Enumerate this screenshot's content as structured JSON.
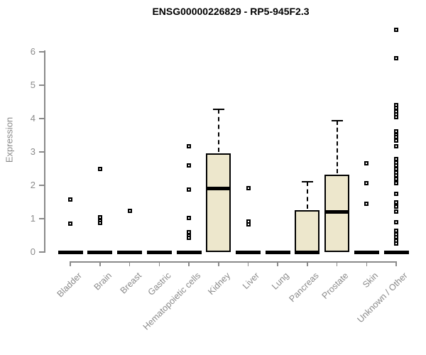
{
  "colors": {
    "box_fill": "#ede7cc",
    "box_border": "#000000",
    "axis_gray": "#8a8a8a",
    "title_color": "#000000",
    "background": "#ffffff"
  },
  "chart_data": {
    "type": "boxplot",
    "title": "ENSG00000226829 - RP5-945F2.3",
    "xlabel": "",
    "ylabel": "Expression",
    "ylim": [
      0,
      6.7
    ],
    "yticks": [
      0,
      1,
      2,
      3,
      4,
      5,
      6
    ],
    "grid": false,
    "legend": "none",
    "categories": [
      "Bladder",
      "Brain",
      "Breast",
      "Gastric",
      "Hematopoietic cells",
      "Kidney",
      "Liver",
      "Lung",
      "Pancreas",
      "Prostate",
      "Skin",
      "Unknown / Other"
    ],
    "series": [
      {
        "category": "Bladder",
        "q1": 0,
        "median": 0,
        "q3": 0,
        "whisker_low": 0,
        "whisker_high": 0,
        "outliers": [
          1.57,
          0.85
        ]
      },
      {
        "category": "Brain",
        "q1": 0,
        "median": 0,
        "q3": 0,
        "whisker_low": 0,
        "whisker_high": 0,
        "outliers": [
          2.49,
          1.04,
          0.94,
          0.87
        ]
      },
      {
        "category": "Breast",
        "q1": 0,
        "median": 0,
        "q3": 0,
        "whisker_low": 0,
        "whisker_high": 0,
        "outliers": [
          1.23
        ]
      },
      {
        "category": "Gastric",
        "q1": 0,
        "median": 0,
        "q3": 0,
        "whisker_low": 0,
        "whisker_high": 0,
        "outliers": []
      },
      {
        "category": "Hematopoietic cells",
        "q1": 0,
        "median": 0,
        "q3": 0,
        "whisker_low": 0,
        "whisker_high": 0,
        "outliers": [
          3.16,
          2.59,
          1.88,
          1.03,
          0.6,
          0.5,
          0.42
        ]
      },
      {
        "category": "Kidney",
        "q1": 0,
        "median": 1.91,
        "q3": 2.96,
        "whisker_low": 0,
        "whisker_high": 4.28,
        "outliers": []
      },
      {
        "category": "Liver",
        "q1": 0,
        "median": 0,
        "q3": 0,
        "whisker_low": 0,
        "whisker_high": 0,
        "outliers": [
          1.91,
          0.92,
          0.83
        ]
      },
      {
        "category": "Lung",
        "q1": 0,
        "median": 0,
        "q3": 0,
        "whisker_low": 0,
        "whisker_high": 0,
        "outliers": []
      },
      {
        "category": "Pancreas",
        "q1": 0,
        "median": 0,
        "q3": 1.26,
        "whisker_low": 0,
        "whisker_high": 2.11,
        "outliers": []
      },
      {
        "category": "Prostate",
        "q1": 0,
        "median": 1.21,
        "q3": 2.32,
        "whisker_low": 0,
        "whisker_high": 3.94,
        "outliers": []
      },
      {
        "category": "Skin",
        "q1": 0,
        "median": 0,
        "q3": 0,
        "whisker_low": 0,
        "whisker_high": 0,
        "outliers": [
          2.66,
          2.06,
          1.45
        ]
      },
      {
        "category": "Unknown / Other",
        "q1": 0,
        "median": 0,
        "q3": 0,
        "whisker_low": 0,
        "whisker_high": 0,
        "outliers": [
          6.67,
          5.81,
          4.4,
          4.31,
          4.22,
          4.12,
          4.05,
          3.62,
          3.51,
          3.44,
          3.35,
          3.16,
          2.79,
          2.68,
          2.59,
          2.48,
          2.39,
          2.3,
          2.19,
          2.06,
          1.74,
          1.5,
          1.37,
          1.21,
          0.9,
          0.64,
          0.53,
          0.44,
          0.34,
          0.26
        ]
      }
    ]
  }
}
